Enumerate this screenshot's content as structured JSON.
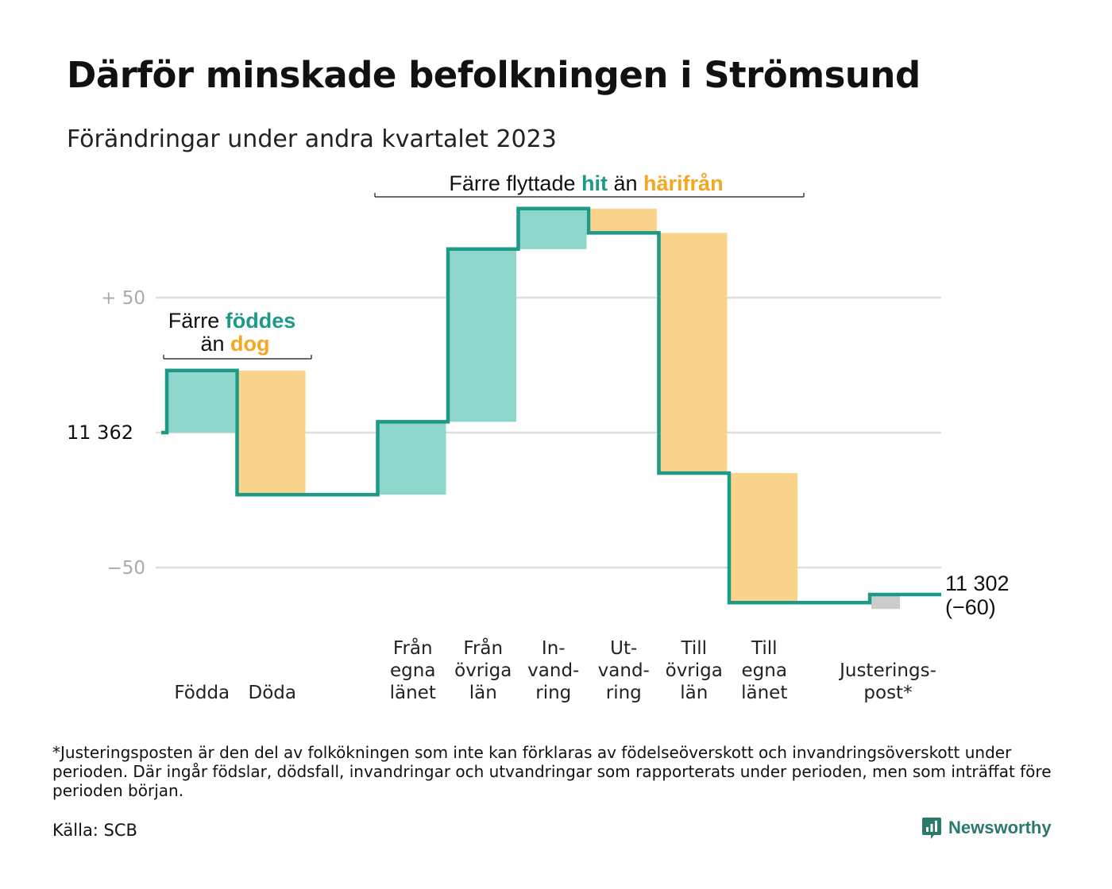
{
  "title": "Därför minskade befolkningen i Strömsund",
  "subtitle": "Förändringar under andra kvartalet 2023",
  "colors": {
    "inflow": "#8ed5cb",
    "outflow": "#fad48c",
    "adjustment": "#cccccc",
    "line": "#1d9a87",
    "text_inflow": "#1d9a87",
    "text_outflow": "#f5a623"
  },
  "annotations": {
    "births": {
      "line1_a": "Färre ",
      "line1_b": "föddes",
      "line2_a": "än ",
      "line2_b": "dog"
    },
    "migration": {
      "a": "Färre flyttade ",
      "b": "hit",
      "c": " än ",
      "d": "härifrån"
    }
  },
  "footnote": "*Justeringsposten är den del av folkökningen som inte kan förklaras av födelseöverskott och invandringsöverskott under perioden. Där ingår födslar, dödsfall, invandringar och utvandringar som rapporterats under perioden, men som inträffat före perioden början.",
  "source": "Källa: SCB",
  "brand": "Newsworthy",
  "chart_data": {
    "type": "waterfall",
    "start_label": "11  362",
    "start_value": 11362,
    "end_label_1": "11 302",
    "end_label_2": "(−60)",
    "end_value": 11302,
    "y_ticks": [
      {
        "value": 50,
        "label": "+  50"
      },
      {
        "value": 0,
        "label": ""
      },
      {
        "value": -50,
        "label": "−50"
      }
    ],
    "y_range": [
      -70,
      85
    ],
    "categories": [
      {
        "lines": [
          "Födda"
        ],
        "delta": 23,
        "kind": "inflow"
      },
      {
        "lines": [
          "Döda"
        ],
        "delta": -46,
        "kind": "outflow"
      },
      {
        "lines": [],
        "delta": 0,
        "kind": "gap"
      },
      {
        "lines": [
          "Från",
          "egna",
          "länet"
        ],
        "delta": 27,
        "kind": "inflow"
      },
      {
        "lines": [
          "Från",
          "övriga",
          "län"
        ],
        "delta": 64,
        "kind": "inflow"
      },
      {
        "lines": [
          "In-",
          "vand-",
          "ring"
        ],
        "delta": 15,
        "kind": "inflow"
      },
      {
        "lines": [
          "Ut-",
          "vand-",
          "ring"
        ],
        "delta": -9,
        "kind": "outflow"
      },
      {
        "lines": [
          "Till",
          "övriga",
          "län"
        ],
        "delta": -89,
        "kind": "outflow"
      },
      {
        "lines": [
          "Till",
          "egna",
          "länet"
        ],
        "delta": -48,
        "kind": "outflow"
      },
      {
        "lines": [],
        "delta": 0,
        "kind": "gap"
      },
      {
        "lines": [
          "Justerings-",
          "post*"
        ],
        "delta": 3,
        "kind": "adjustment"
      }
    ]
  }
}
